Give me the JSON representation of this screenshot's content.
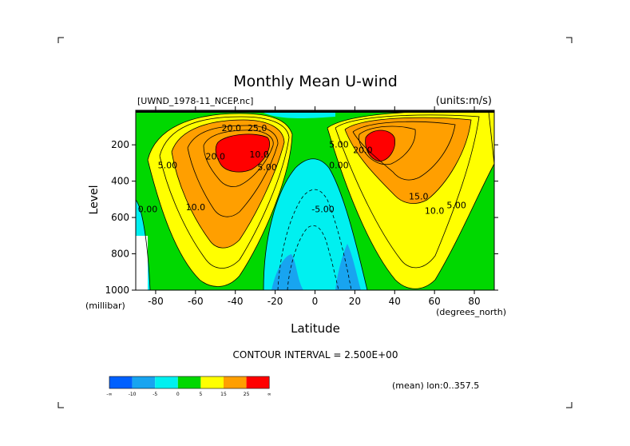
{
  "chart_data": {
    "type": "contour",
    "title": "Monthly Mean U-wind",
    "dataset_label": "[UWND_1978-11_NCEP.nc]",
    "units_label": "(units:m/s)",
    "xlabel": "Latitude",
    "ylabel": "Level",
    "x_unit_label": "(degrees_north)",
    "y_unit_label": "(millibar)",
    "xlim": [
      -90,
      90
    ],
    "ylim": [
      1000,
      10
    ],
    "x_ticks": [
      -80,
      -60,
      -40,
      -20,
      0,
      20,
      40,
      60,
      80
    ],
    "y_ticks": [
      200,
      400,
      600,
      800,
      1000
    ],
    "contour_interval_text": "CONTOUR INTERVAL = 2.500E+00",
    "mean_text": "(mean) lon:0..357.5",
    "contour_labels": [
      {
        "text": "20.0",
        "lat": -42,
        "p": 125
      },
      {
        "text": "25.0",
        "lat": -29,
        "p": 125
      },
      {
        "text": "20.0",
        "lat": -50,
        "p": 280
      },
      {
        "text": "5.00",
        "lat": -74,
        "p": 330
      },
      {
        "text": "0.00",
        "lat": -84,
        "p": 570
      },
      {
        "text": "10.0",
        "lat": -60,
        "p": 560
      },
      {
        "text": "10.0",
        "lat": -28,
        "p": 270
      },
      {
        "text": "5.00",
        "lat": -24,
        "p": 340
      },
      {
        "text": "5.00",
        "lat": 12,
        "p": 215
      },
      {
        "text": "0.00",
        "lat": 12,
        "p": 330
      },
      {
        "text": "-5.00",
        "lat": 4,
        "p": 570
      },
      {
        "text": "20.0",
        "lat": 24,
        "p": 245
      },
      {
        "text": "15.0",
        "lat": 52,
        "p": 500
      },
      {
        "text": "10.0",
        "lat": 60,
        "p": 580
      },
      {
        "text": "5.00",
        "lat": 71,
        "p": 550
      }
    ],
    "legend": {
      "colors": [
        "#0060ff",
        "#18a4f0",
        "#00f0f0",
        "#00d800",
        "#ffff00",
        "#ff9f00",
        "#ff0000"
      ],
      "labels": [
        "-∞",
        "-10",
        "-5",
        "0",
        "5",
        "15",
        "25",
        "∞"
      ]
    }
  }
}
